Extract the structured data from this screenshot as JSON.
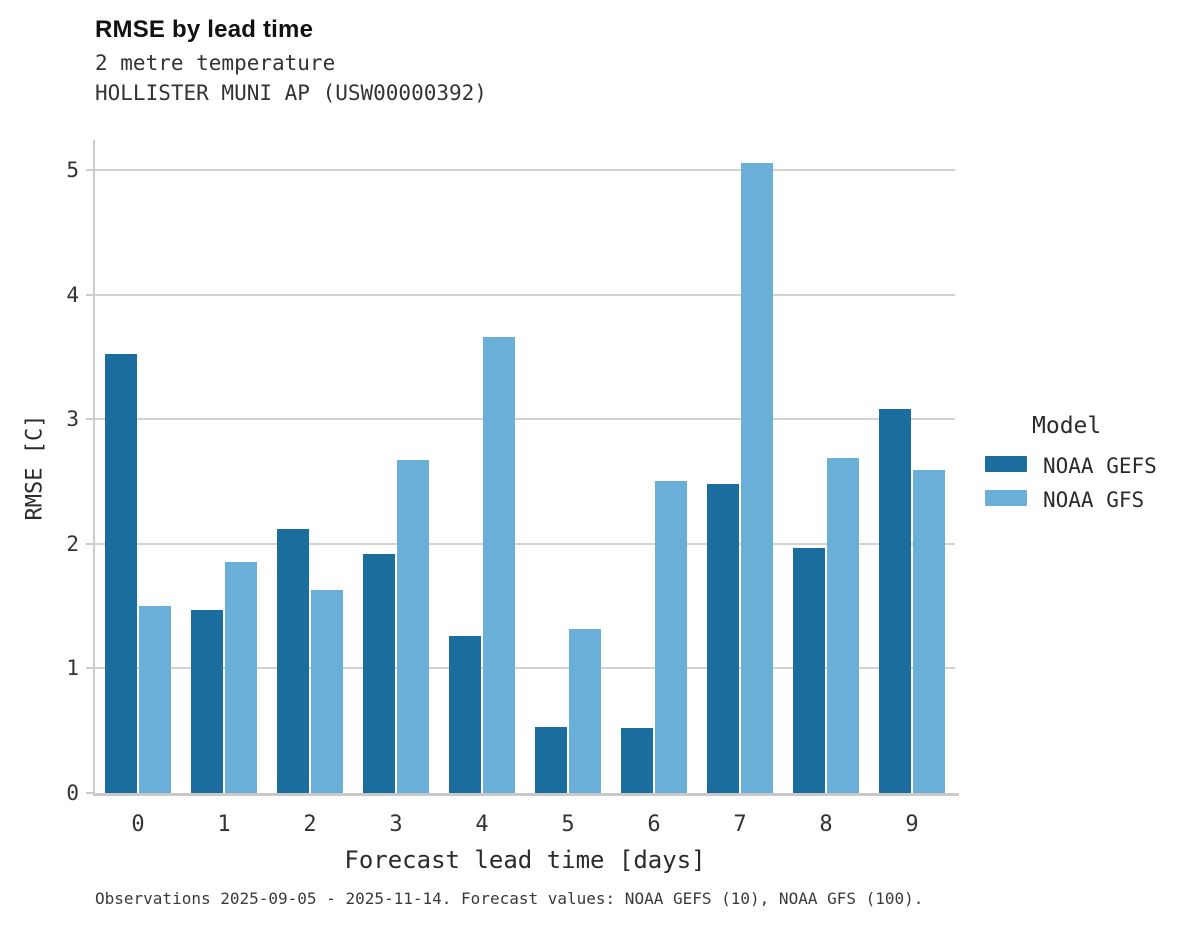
{
  "header": {
    "title": "RMSE by lead time",
    "subtitle1": "2 metre temperature",
    "subtitle2": "HOLLISTER MUNI AP (USW00000392)"
  },
  "legend": {
    "title": "Model",
    "items": [
      {
        "label": "NOAA GEFS",
        "color": "#1b6d9e"
      },
      {
        "label": "NOAA GFS",
        "color": "#69afd8"
      }
    ]
  },
  "footer": {
    "note": "Observations 2025-09-05 - 2025-11-14. Forecast values: NOAA GEFS (10), NOAA GFS (100)."
  },
  "chart_data": {
    "type": "bar",
    "title": "RMSE by lead time",
    "subtitle": [
      "2 metre temperature",
      "HOLLISTER MUNI AP (USW00000392)"
    ],
    "categories": [
      "0",
      "1",
      "2",
      "3",
      "4",
      "5",
      "6",
      "7",
      "8",
      "9"
    ],
    "series": [
      {
        "name": "NOAA GEFS",
        "color": "#1b6d9e",
        "values": [
          3.52,
          1.47,
          2.12,
          1.92,
          1.26,
          0.53,
          0.52,
          2.48,
          1.97,
          3.08
        ]
      },
      {
        "name": "NOAA GFS",
        "color": "#69afd8",
        "values": [
          1.5,
          1.85,
          1.63,
          2.67,
          3.66,
          1.32,
          2.5,
          5.06,
          2.69,
          2.59
        ]
      }
    ],
    "xlabel": "Forecast lead time [days]",
    "ylabel": "RMSE [C]",
    "ylim": [
      0,
      5.24
    ],
    "yticks": [
      0,
      1,
      2,
      3,
      4,
      5
    ],
    "grid": true,
    "grid_color": "#d2d2d2",
    "legend_title": "Model",
    "legend_position": "right"
  }
}
